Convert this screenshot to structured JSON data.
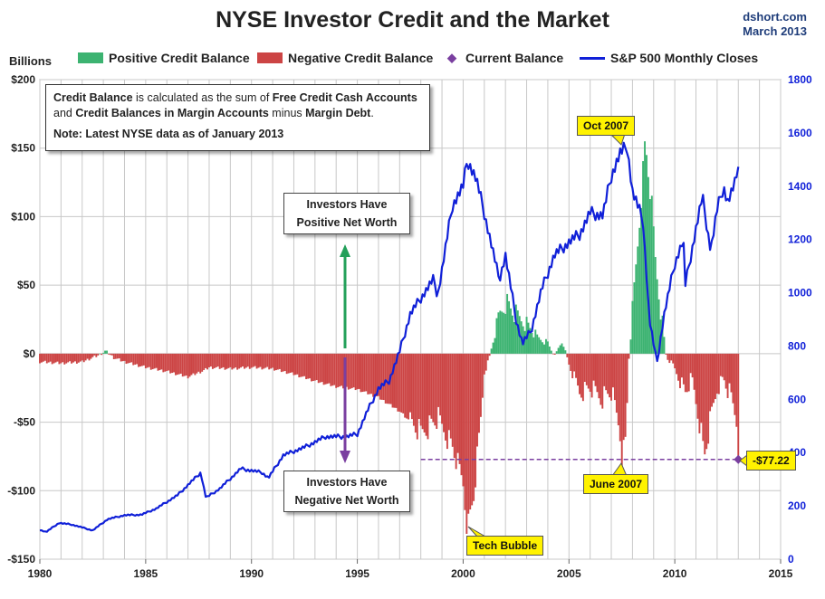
{
  "title": "NYSE Investor Credit and the Market",
  "source": {
    "line1": "dshort.com",
    "line2": "March 2013"
  },
  "y_left_label": "Billions",
  "legend": [
    {
      "label": "Positive Credit Balance",
      "color": "#3cb371",
      "kind": "bar"
    },
    {
      "label": "Negative Credit Balance",
      "color": "#cc4444",
      "kind": "bar"
    },
    {
      "label": "Current Balance",
      "color": "#7a3fa0",
      "kind": "diamond"
    },
    {
      "label": "S&P 500 Monthly Closes",
      "color": "#1020d8",
      "kind": "line"
    }
  ],
  "note": {
    "t1": "Credit Balance",
    "t2": " is calculated as the sum of ",
    "t3": "Free Credit Cash Accounts",
    "t4": "and ",
    "t5": "Credit Balances in Margin Accounts",
    "t6": " minus ",
    "t7": "Margin Debt",
    "t8": ".",
    "t9": "Note: Latest NYSE data as of January 2013"
  },
  "callouts": {
    "positive": [
      "Investors Have",
      "Positive Net Worth"
    ],
    "negative": [
      "Investors Have",
      "Negative Net Worth"
    ]
  },
  "labels": {
    "oct2007": "Oct 2007",
    "june2007": "June 2007",
    "tech": "Tech Bubble",
    "current": "-$77.22"
  },
  "colors": {
    "positive": "#3cb371",
    "negative": "#cc4444",
    "sp500": "#1020d8",
    "current": "#7a3fa0",
    "grid": "#c8c8c8",
    "arrow_up": "#23a05a",
    "arrow_down": "#7a3fa0"
  },
  "chart_data": {
    "type": "bar",
    "x_range": [
      1980,
      2015
    ],
    "x_ticks": [
      1980,
      1985,
      1990,
      1995,
      2000,
      2005,
      2010,
      2015
    ],
    "x_tick_labels": [
      "1980",
      "1985",
      "1990",
      "1995",
      "2000",
      "2005",
      "2010",
      "2015"
    ],
    "y_left": {
      "range": [
        -150,
        200
      ],
      "ticks": [
        -150,
        -100,
        -50,
        0,
        50,
        100,
        150,
        200
      ],
      "tick_labels": [
        "-$150",
        "-$100",
        "-$50",
        "$0",
        "$50",
        "$100",
        "$150",
        "$200"
      ]
    },
    "y_right": {
      "range": [
        0,
        1800
      ],
      "ticks": [
        0,
        200,
        400,
        600,
        800,
        1000,
        1200,
        1400,
        1600,
        1800
      ],
      "tick_labels": [
        "0",
        "200",
        "400",
        "600",
        "800",
        "1000",
        "1200",
        "1400",
        "1600",
        "1800"
      ]
    },
    "credit_balance_anchors": [
      [
        1980.0,
        -6
      ],
      [
        1981.0,
        -7
      ],
      [
        1982.0,
        -6
      ],
      [
        1982.8,
        -1
      ],
      [
        1983.1,
        2
      ],
      [
        1983.5,
        -3
      ],
      [
        1984.0,
        -6
      ],
      [
        1985.0,
        -10
      ],
      [
        1986.0,
        -13
      ],
      [
        1987.0,
        -17
      ],
      [
        1987.8,
        -12
      ],
      [
        1988.0,
        -10
      ],
      [
        1989.0,
        -11
      ],
      [
        1990.0,
        -10
      ],
      [
        1991.0,
        -11
      ],
      [
        1992.0,
        -15
      ],
      [
        1993.0,
        -20
      ],
      [
        1994.0,
        -24
      ],
      [
        1995.0,
        -26
      ],
      [
        1996.0,
        -32
      ],
      [
        1997.0,
        -42
      ],
      [
        1998.0,
        -58
      ],
      [
        1998.8,
        -47
      ],
      [
        1999.5,
        -68
      ],
      [
        2000.0,
        -95
      ],
      [
        2000.2,
        -128
      ],
      [
        2000.5,
        -104
      ],
      [
        2000.8,
        -55
      ],
      [
        2001.0,
        -13
      ],
      [
        2001.2,
        -5
      ],
      [
        2001.4,
        8
      ],
      [
        2001.7,
        28
      ],
      [
        2002.0,
        38
      ],
      [
        2002.5,
        28
      ],
      [
        2003.0,
        22
      ],
      [
        2003.5,
        12
      ],
      [
        2004.0,
        8
      ],
      [
        2004.3,
        -2
      ],
      [
        2004.7,
        10
      ],
      [
        2005.0,
        -8
      ],
      [
        2005.5,
        -28
      ],
      [
        2006.0,
        -25
      ],
      [
        2006.5,
        -32
      ],
      [
        2007.0,
        -28
      ],
      [
        2007.4,
        -55
      ],
      [
        2007.5,
        -76
      ],
      [
        2007.7,
        -62
      ],
      [
        2007.8,
        -10
      ],
      [
        2008.0,
        30
      ],
      [
        2008.3,
        90
      ],
      [
        2008.6,
        155
      ],
      [
        2008.9,
        110
      ],
      [
        2009.1,
        65
      ],
      [
        2009.4,
        25
      ],
      [
        2009.6,
        -3
      ],
      [
        2009.9,
        -8
      ],
      [
        2010.2,
        -18
      ],
      [
        2010.5,
        -28
      ],
      [
        2010.8,
        -18
      ],
      [
        2011.2,
        -52
      ],
      [
        2011.4,
        -75
      ],
      [
        2011.7,
        -48
      ],
      [
        2012.0,
        -25
      ],
      [
        2012.3,
        -18
      ],
      [
        2012.7,
        -35
      ],
      [
        2012.95,
        -50
      ],
      [
        2013.0,
        -77.22
      ]
    ],
    "current_balance": {
      "x": 2013.0,
      "value": -77.22
    },
    "sp500_anchors": [
      [
        1980.0,
        110
      ],
      [
        1980.3,
        102
      ],
      [
        1980.9,
        136
      ],
      [
        1981.5,
        130
      ],
      [
        1982.5,
        108
      ],
      [
        1983.2,
        150
      ],
      [
        1984.0,
        165
      ],
      [
        1984.8,
        167
      ],
      [
        1985.5,
        190
      ],
      [
        1986.5,
        240
      ],
      [
        1987.6,
        325
      ],
      [
        1987.85,
        230
      ],
      [
        1988.5,
        265
      ],
      [
        1989.5,
        340
      ],
      [
        1990.5,
        325
      ],
      [
        1990.8,
        305
      ],
      [
        1991.5,
        390
      ],
      [
        1992.5,
        420
      ],
      [
        1993.5,
        460
      ],
      [
        1994.5,
        460
      ],
      [
        1995.0,
        470
      ],
      [
        1995.5,
        560
      ],
      [
        1996.0,
        640
      ],
      [
        1996.5,
        670
      ],
      [
        1997.0,
        780
      ],
      [
        1997.5,
        920
      ],
      [
        1998.0,
        980
      ],
      [
        1998.6,
        1050
      ],
      [
        1998.8,
        990
      ],
      [
        1999.5,
        1330
      ],
      [
        2000.0,
        1400
      ],
      [
        2000.2,
        1500
      ],
      [
        2000.6,
        1430
      ],
      [
        2001.0,
        1300
      ],
      [
        2001.7,
        1050
      ],
      [
        2002.0,
        1140
      ],
      [
        2002.5,
        900
      ],
      [
        2002.8,
        810
      ],
      [
        2003.2,
        855
      ],
      [
        2003.7,
        1010
      ],
      [
        2004.3,
        1140
      ],
      [
        2005.0,
        1190
      ],
      [
        2005.5,
        1220
      ],
      [
        2006.0,
        1300
      ],
      [
        2006.6,
        1290
      ],
      [
        2007.0,
        1440
      ],
      [
        2007.4,
        1520
      ],
      [
        2007.75,
        1550
      ],
      [
        2008.0,
        1380
      ],
      [
        2008.5,
        1270
      ],
      [
        2008.8,
        900
      ],
      [
        2009.15,
        735
      ],
      [
        2009.5,
        920
      ],
      [
        2010.0,
        1110
      ],
      [
        2010.4,
        1200
      ],
      [
        2010.5,
        1030
      ],
      [
        2010.9,
        1200
      ],
      [
        2011.3,
        1360
      ],
      [
        2011.7,
        1160
      ],
      [
        2012.0,
        1310
      ],
      [
        2012.3,
        1400
      ],
      [
        2012.5,
        1340
      ],
      [
        2012.9,
        1420
      ],
      [
        2013.0,
        1500
      ]
    ],
    "reference_line": {
      "value": -77.22,
      "x_from": 1998.0,
      "x_to": 2013.0
    }
  }
}
